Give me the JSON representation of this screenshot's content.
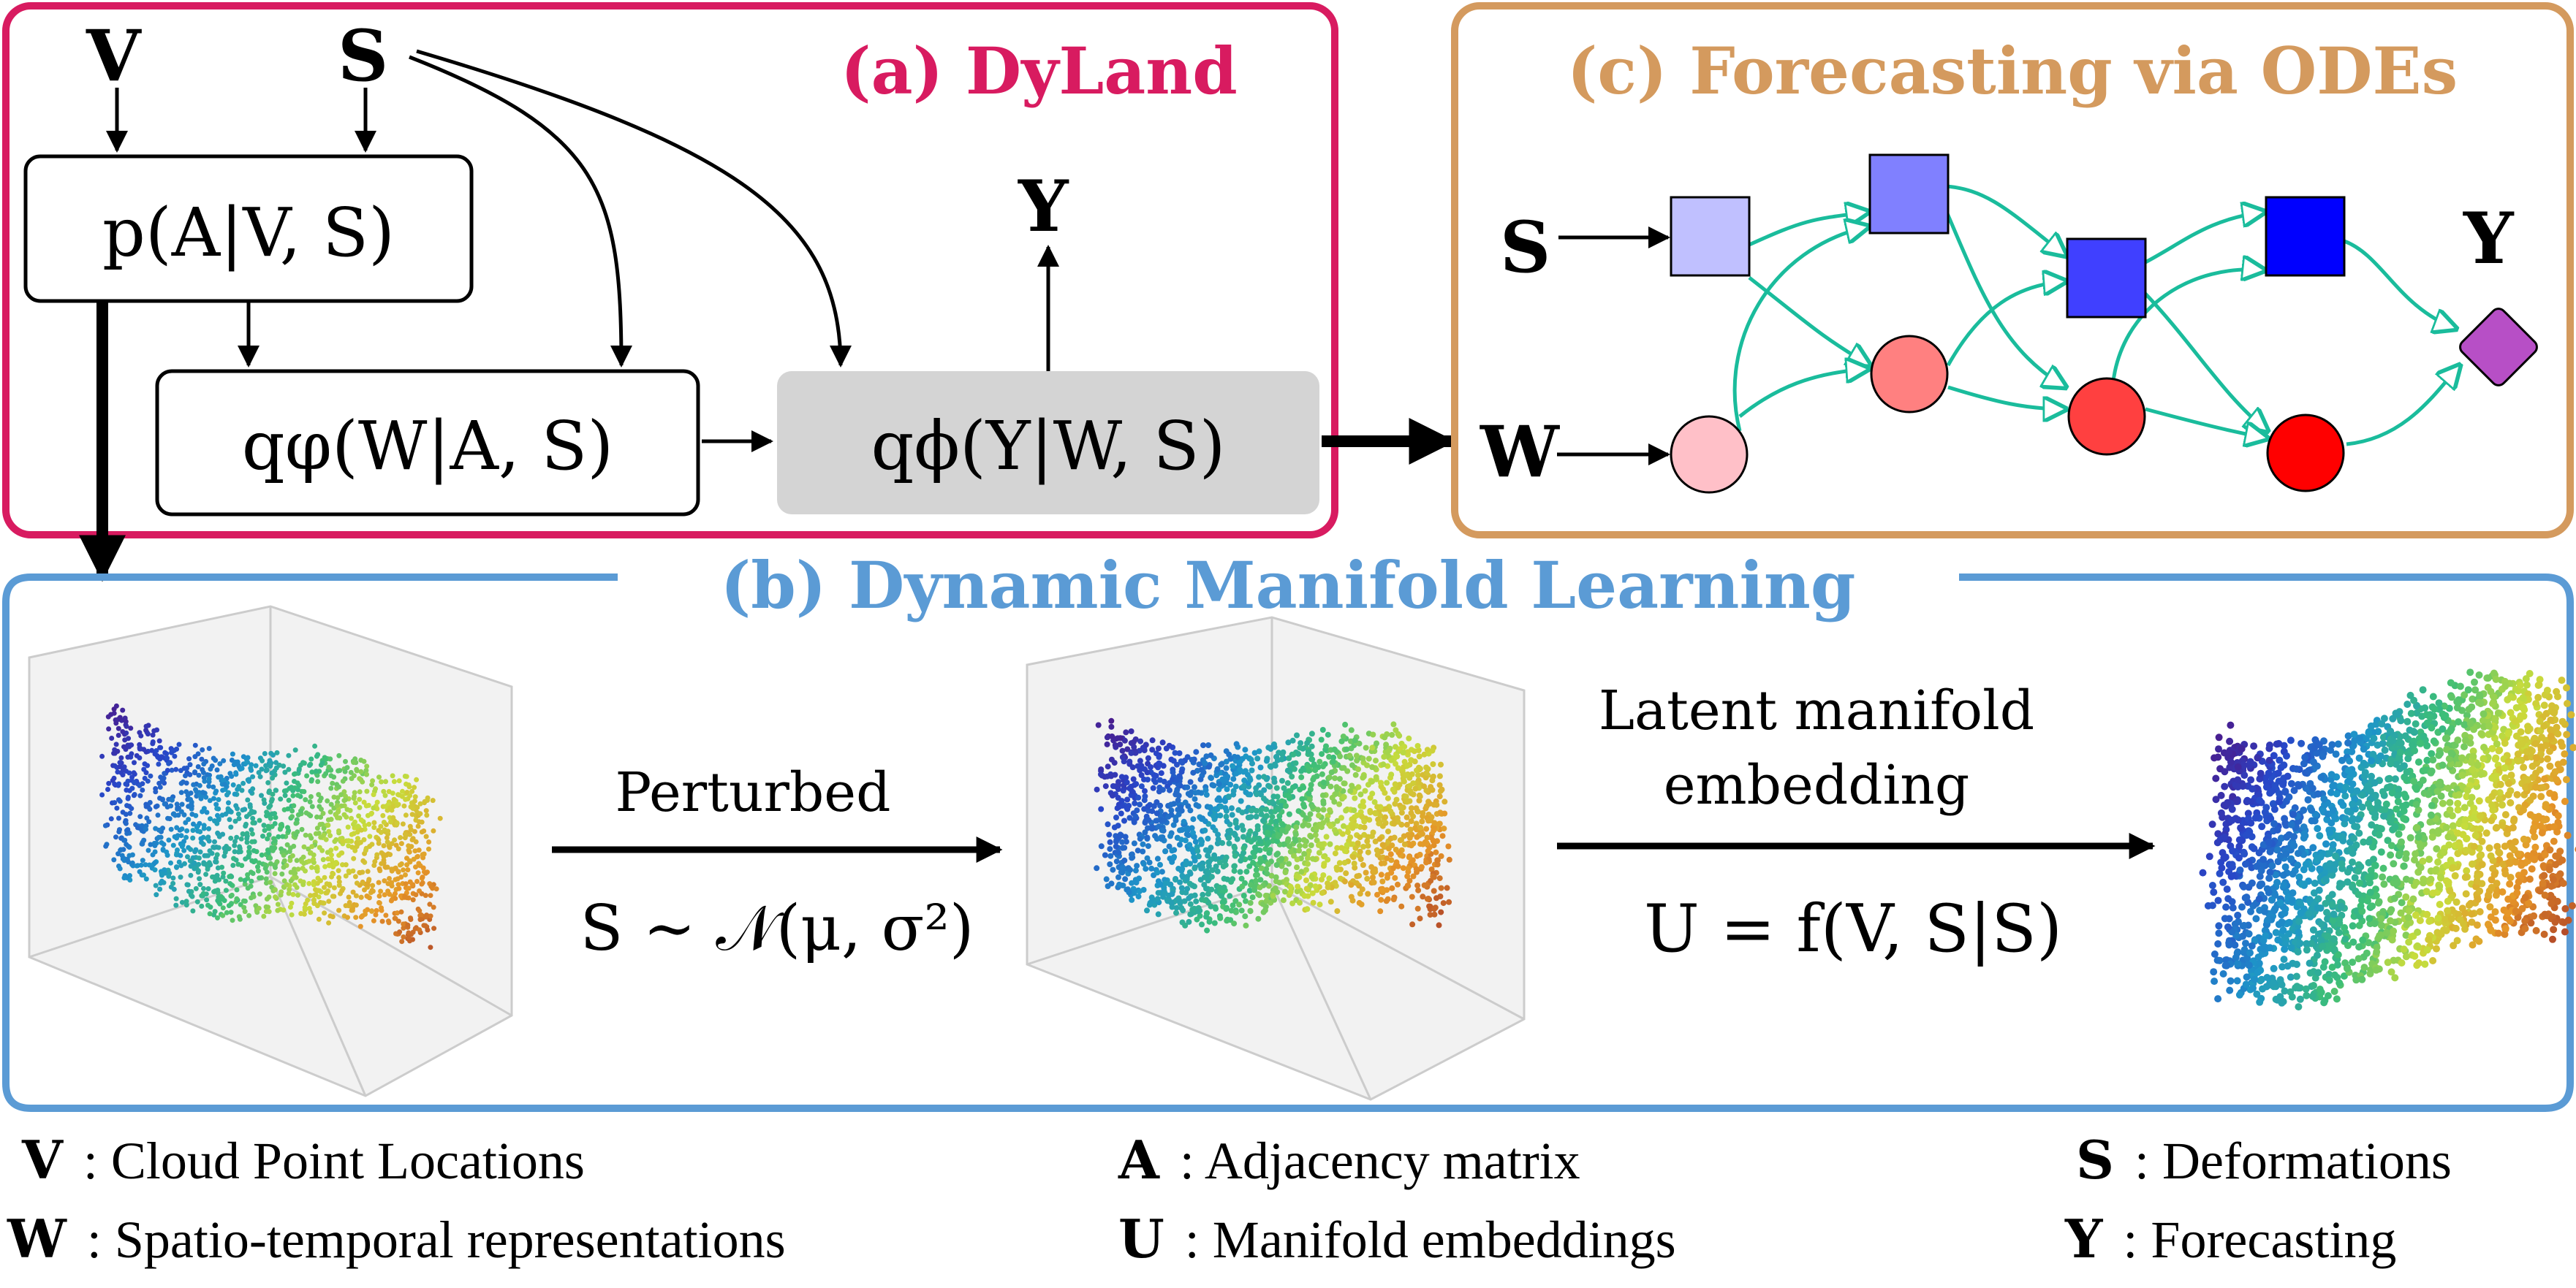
{
  "colors": {
    "dyland_border": "#d81b60",
    "ode_border": "#d49a5e",
    "manifold_border": "#5b9bd5",
    "edge": "#1abc9c",
    "gray_box": "#d4d4d4"
  },
  "panel_a": {
    "title": "(a) DyLand",
    "input_v": "V",
    "input_s": "S",
    "output_y": "Y",
    "box_p": "p(A|V, S)",
    "box_q_phi_sub": "qφ(W|A, S)",
    "box_q_phi": "qϕ(Y|W, S)"
  },
  "panel_c": {
    "title": "(c) Forecasting via ODEs",
    "input_s": "S",
    "input_w": "W",
    "output_y": "Y"
  },
  "panel_b": {
    "title": "(b) Dynamic Manifold Learning",
    "arrow1_label": "Perturbed",
    "arrow1_formula": "S ∼ 𝒩(μ, σ²)",
    "arrow2_label_line1": "Latent manifold",
    "arrow2_label_line2": "embedding",
    "arrow2_formula": "U = f(V, S|S)"
  },
  "legend": [
    {
      "symbol": "V",
      "text": ": Cloud Point Locations"
    },
    {
      "symbol": "A",
      "text": ": Adjacency matrix"
    },
    {
      "symbol": "S",
      "text": ": Deformations"
    },
    {
      "symbol": "W",
      "text": ": Spatio-temporal representations"
    },
    {
      "symbol": "U",
      "text": ": Manifold embeddings"
    },
    {
      "symbol": "Y",
      "text": ": Forecasting"
    }
  ]
}
